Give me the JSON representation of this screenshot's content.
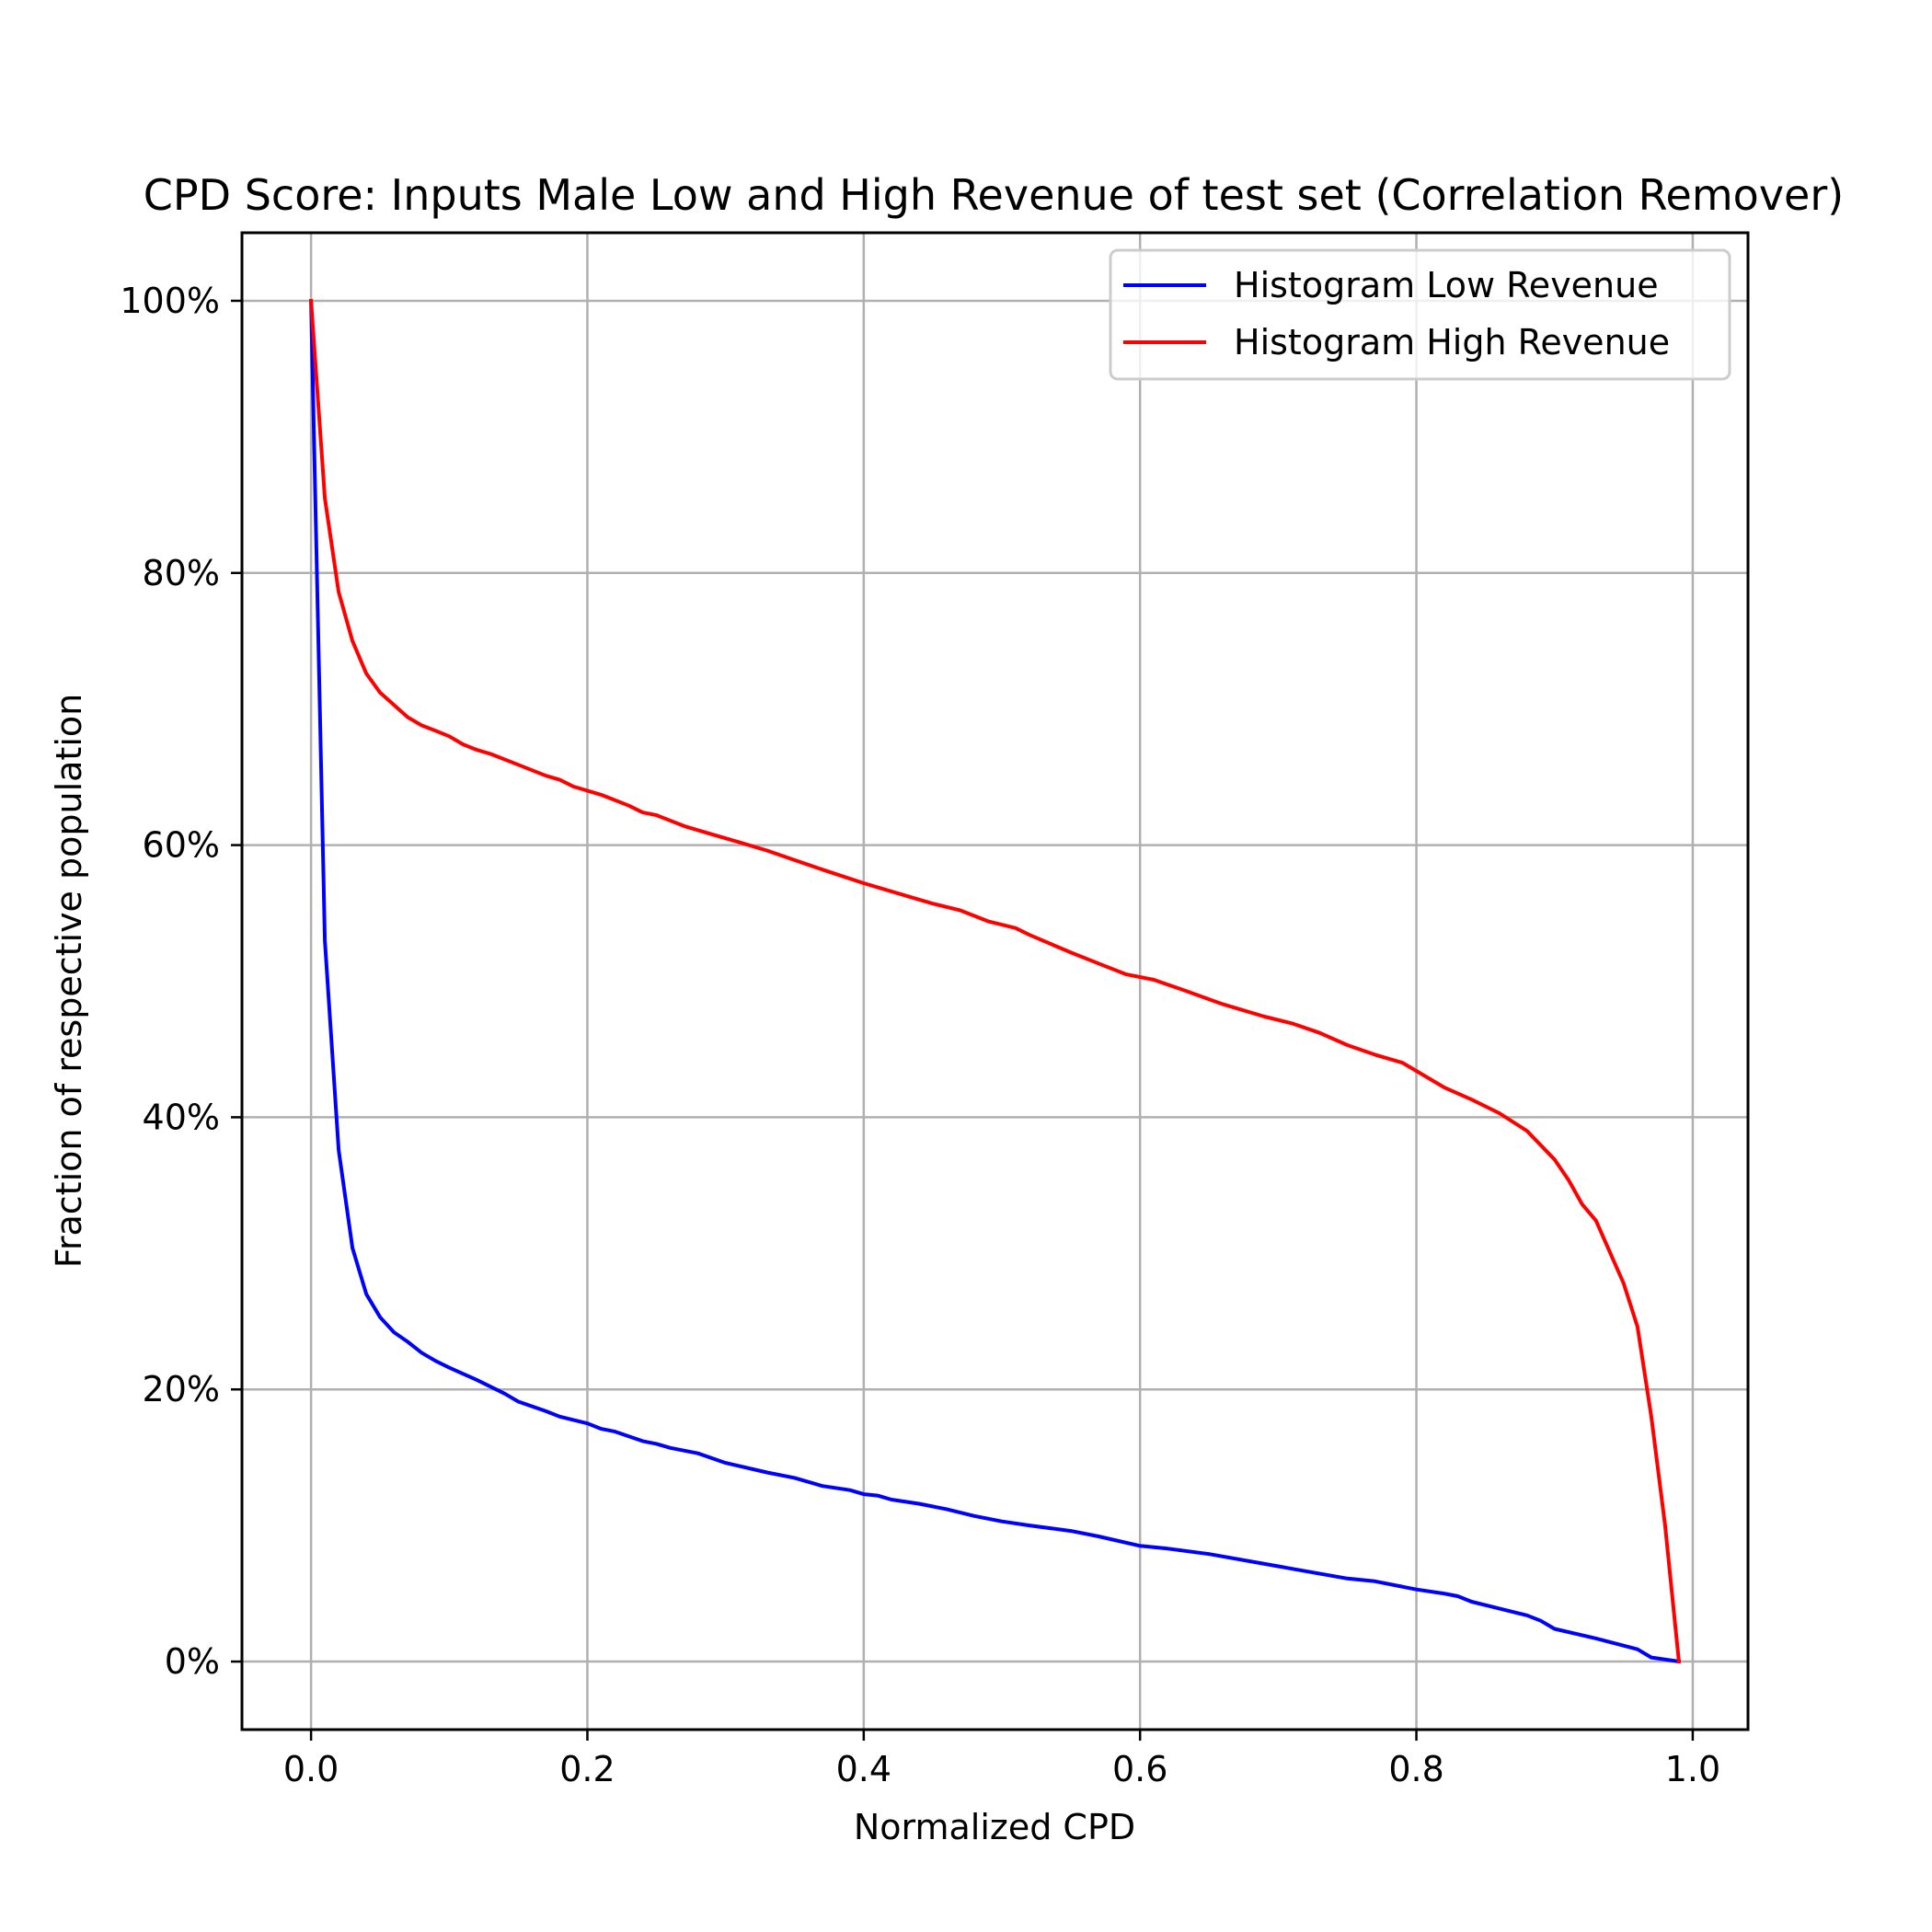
{
  "chart_data": {
    "type": "line",
    "title": "CPD Score: Inputs Male Low and High Revenue of test set (Correlation Remover)",
    "xlabel": "Normalized CPD",
    "ylabel": "Fraction of respective population",
    "xlim": [
      -0.05,
      1.04
    ],
    "ylim": [
      -5,
      105
    ],
    "x_ticks": [
      0.0,
      0.2,
      0.4,
      0.6,
      0.8,
      1.0
    ],
    "x_tick_labels": [
      "0.0",
      "0.2",
      "0.4",
      "0.6",
      "0.8",
      "1.0"
    ],
    "y_ticks": [
      0,
      20,
      40,
      60,
      80,
      100
    ],
    "y_tick_labels": [
      "0%",
      "20%",
      "40%",
      "60%",
      "80%",
      "100%"
    ],
    "grid": true,
    "legend_position": "upper right",
    "series": [
      {
        "name": "Histogram Low Revenue",
        "color": "#0000ff",
        "points": [
          [
            0.0,
            100.0
          ],
          [
            0.01,
            53.0
          ],
          [
            0.02,
            37.6
          ],
          [
            0.03,
            30.4
          ],
          [
            0.04,
            27.0
          ],
          [
            0.05,
            25.3
          ],
          [
            0.06,
            24.2
          ],
          [
            0.07,
            23.5
          ],
          [
            0.08,
            22.7
          ],
          [
            0.09,
            22.1
          ],
          [
            0.1,
            21.6
          ],
          [
            0.12,
            20.7
          ],
          [
            0.14,
            19.7
          ],
          [
            0.15,
            19.1
          ],
          [
            0.17,
            18.4
          ],
          [
            0.18,
            18.0
          ],
          [
            0.2,
            17.5
          ],
          [
            0.21,
            17.1
          ],
          [
            0.22,
            16.9
          ],
          [
            0.24,
            16.2
          ],
          [
            0.25,
            16.0
          ],
          [
            0.26,
            15.7
          ],
          [
            0.28,
            15.3
          ],
          [
            0.3,
            14.6
          ],
          [
            0.33,
            13.9
          ],
          [
            0.35,
            13.5
          ],
          [
            0.37,
            12.9
          ],
          [
            0.39,
            12.6
          ],
          [
            0.4,
            12.3
          ],
          [
            0.41,
            12.2
          ],
          [
            0.42,
            11.9
          ],
          [
            0.44,
            11.6
          ],
          [
            0.46,
            11.2
          ],
          [
            0.48,
            10.7
          ],
          [
            0.5,
            10.3
          ],
          [
            0.52,
            10.0
          ],
          [
            0.55,
            9.6
          ],
          [
            0.57,
            9.2
          ],
          [
            0.6,
            8.5
          ],
          [
            0.62,
            8.3
          ],
          [
            0.65,
            7.9
          ],
          [
            0.7,
            7.0
          ],
          [
            0.75,
            6.1
          ],
          [
            0.77,
            5.9
          ],
          [
            0.8,
            5.3
          ],
          [
            0.82,
            5.0
          ],
          [
            0.83,
            4.8
          ],
          [
            0.84,
            4.4
          ],
          [
            0.86,
            3.9
          ],
          [
            0.88,
            3.4
          ],
          [
            0.89,
            3.0
          ],
          [
            0.9,
            2.4
          ],
          [
            0.93,
            1.7
          ],
          [
            0.96,
            0.9
          ],
          [
            0.97,
            0.3
          ],
          [
            0.99,
            0.0
          ]
        ]
      },
      {
        "name": "Histogram High Revenue",
        "color": "#ff0000",
        "points": [
          [
            0.0,
            100.0
          ],
          [
            0.01,
            85.5
          ],
          [
            0.02,
            78.6
          ],
          [
            0.03,
            75.0
          ],
          [
            0.04,
            72.6
          ],
          [
            0.05,
            71.2
          ],
          [
            0.06,
            70.3
          ],
          [
            0.07,
            69.4
          ],
          [
            0.08,
            68.8
          ],
          [
            0.09,
            68.4
          ],
          [
            0.1,
            68.0
          ],
          [
            0.11,
            67.4
          ],
          [
            0.12,
            67.0
          ],
          [
            0.13,
            66.7
          ],
          [
            0.15,
            65.9
          ],
          [
            0.17,
            65.1
          ],
          [
            0.18,
            64.8
          ],
          [
            0.19,
            64.3
          ],
          [
            0.21,
            63.7
          ],
          [
            0.23,
            62.9
          ],
          [
            0.24,
            62.4
          ],
          [
            0.25,
            62.2
          ],
          [
            0.27,
            61.4
          ],
          [
            0.29,
            60.8
          ],
          [
            0.31,
            60.2
          ],
          [
            0.33,
            59.6
          ],
          [
            0.35,
            58.9
          ],
          [
            0.37,
            58.2
          ],
          [
            0.4,
            57.2
          ],
          [
            0.42,
            56.6
          ],
          [
            0.44,
            56.0
          ],
          [
            0.45,
            55.7
          ],
          [
            0.47,
            55.2
          ],
          [
            0.49,
            54.4
          ],
          [
            0.51,
            53.9
          ],
          [
            0.52,
            53.4
          ],
          [
            0.55,
            52.1
          ],
          [
            0.57,
            51.3
          ],
          [
            0.59,
            50.5
          ],
          [
            0.61,
            50.1
          ],
          [
            0.63,
            49.4
          ],
          [
            0.66,
            48.3
          ],
          [
            0.69,
            47.4
          ],
          [
            0.71,
            46.9
          ],
          [
            0.73,
            46.2
          ],
          [
            0.75,
            45.3
          ],
          [
            0.77,
            44.6
          ],
          [
            0.79,
            44.0
          ],
          [
            0.8,
            43.4
          ],
          [
            0.82,
            42.2
          ],
          [
            0.84,
            41.3
          ],
          [
            0.86,
            40.3
          ],
          [
            0.88,
            39.0
          ],
          [
            0.9,
            36.9
          ],
          [
            0.91,
            35.4
          ],
          [
            0.92,
            33.6
          ],
          [
            0.93,
            32.4
          ],
          [
            0.95,
            27.8
          ],
          [
            0.96,
            24.6
          ],
          [
            0.97,
            18.0
          ],
          [
            0.98,
            10.0
          ],
          [
            0.99,
            0.0
          ]
        ]
      }
    ]
  }
}
